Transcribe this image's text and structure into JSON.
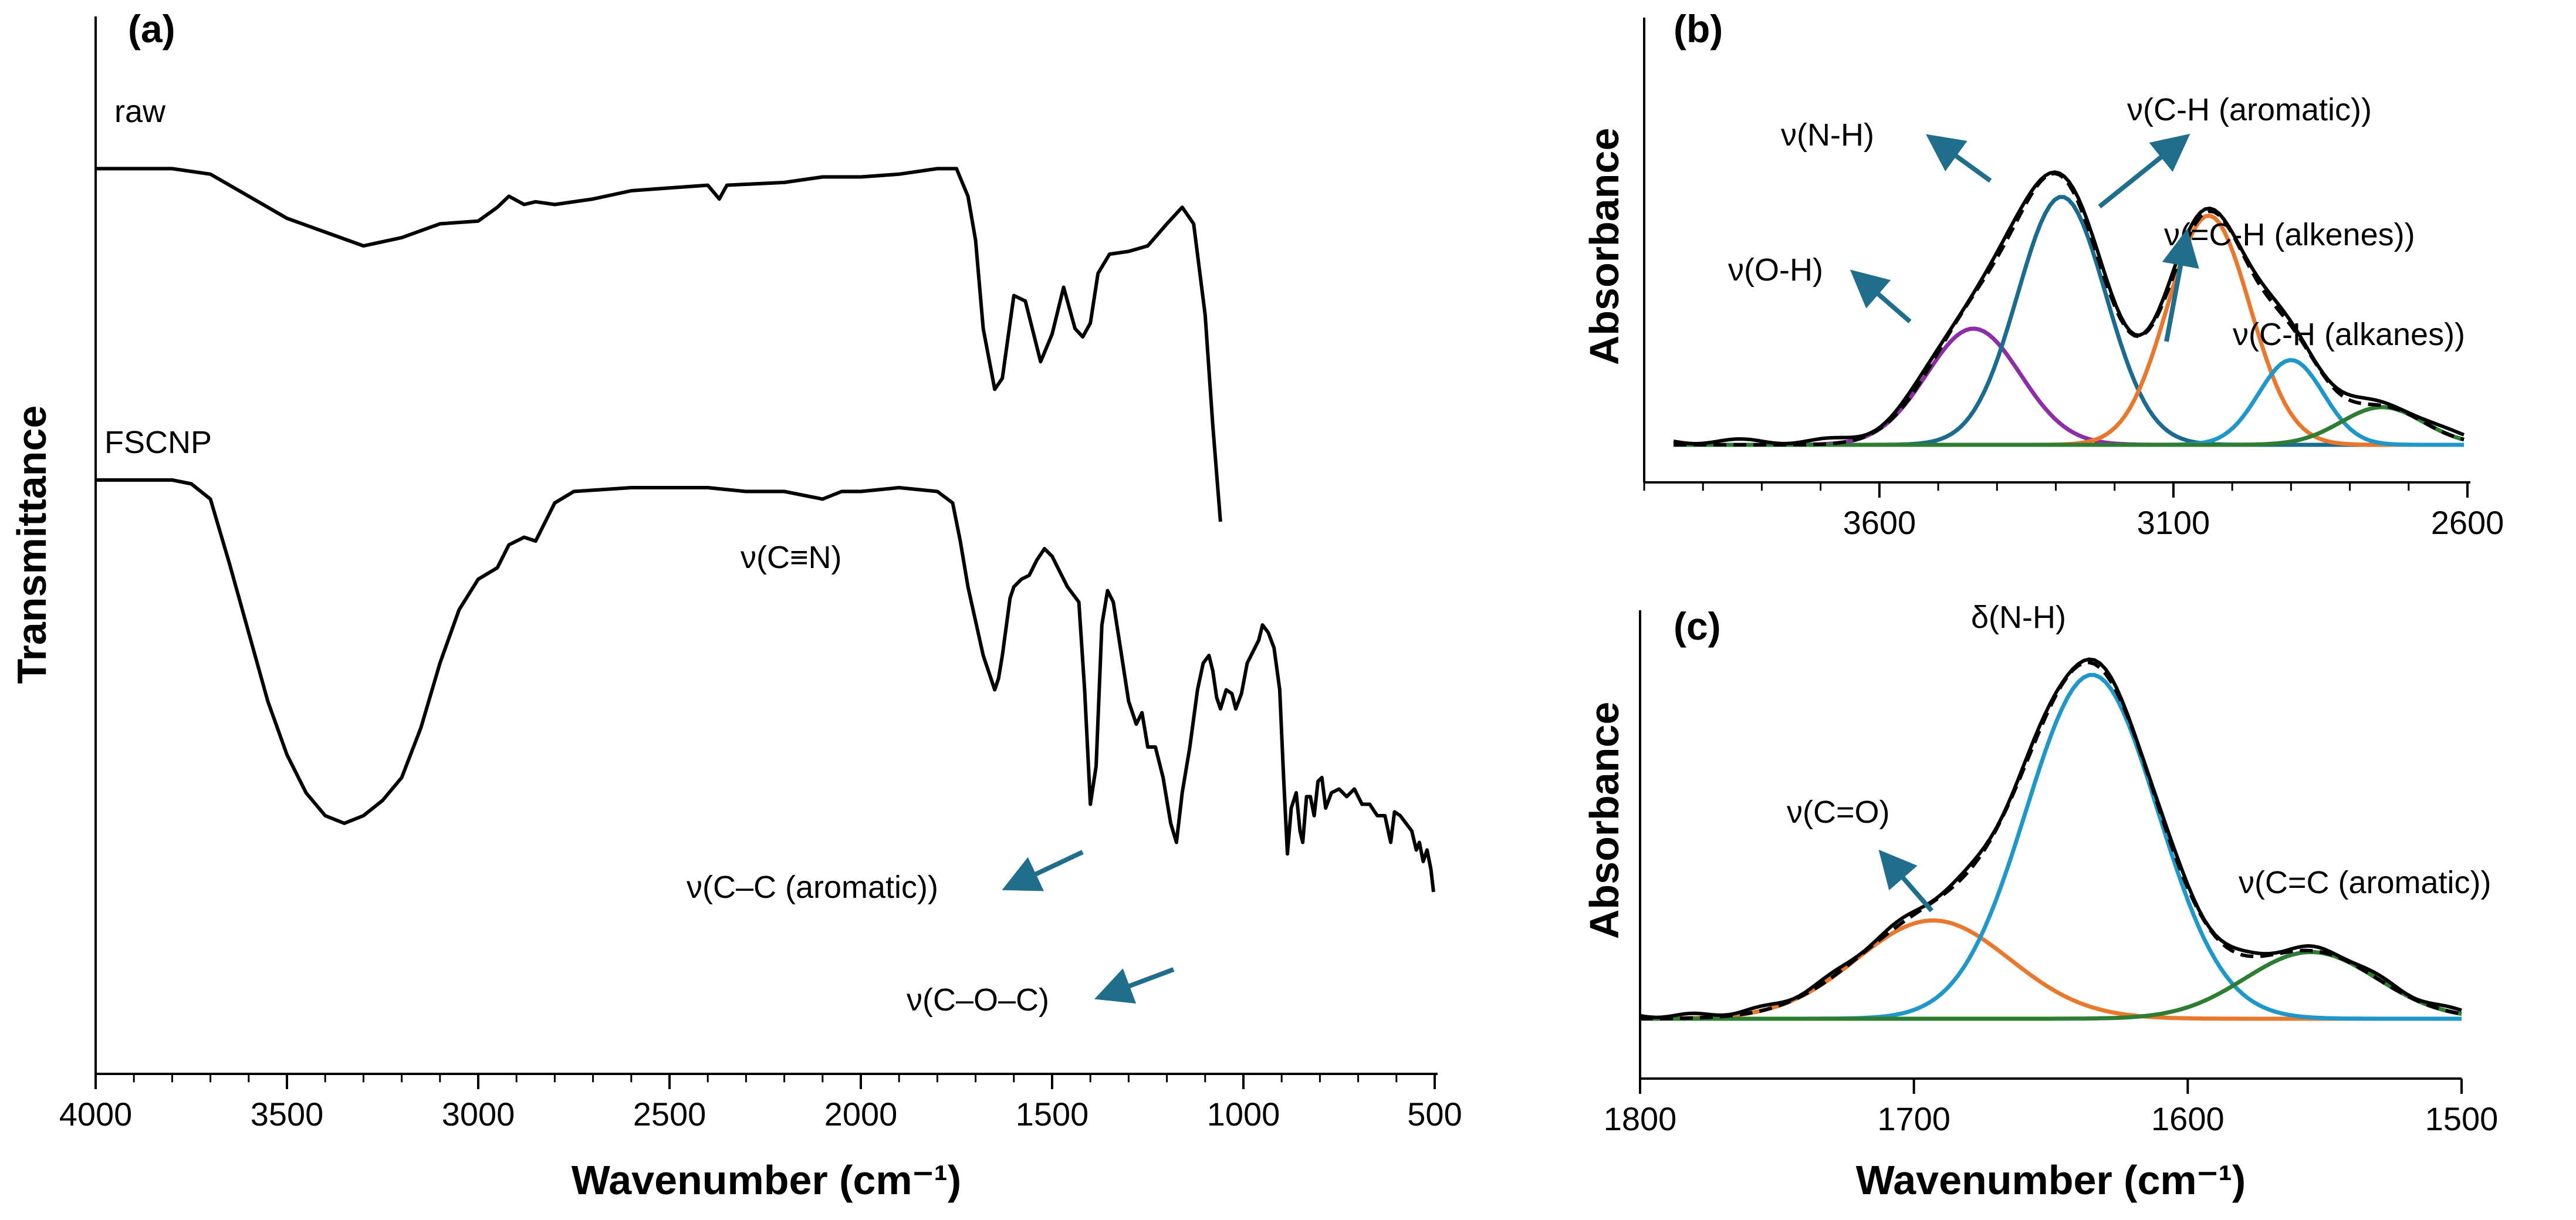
{
  "colors": {
    "spectrum": "#000000",
    "arrow": "#1f6e8c",
    "purple": "#8e2ea6",
    "teal": "#1b6b8f",
    "orange": "#e8782e",
    "lightblue": "#1f97c9",
    "green": "#2e7d32"
  },
  "chart_data": [
    {
      "id": "a",
      "panel": "(a)",
      "type": "line",
      "xlabel": "Wavenumber (cm⁻¹)",
      "ylabel": "Transmittance",
      "xlim": [
        4000,
        500
      ],
      "x_ticks": [
        "4000",
        "3500",
        "3000",
        "2500",
        "2000",
        "1500",
        "1000",
        "500"
      ],
      "series": [
        {
          "name": "raw",
          "points": [
            [
              4000,
              0.02
            ],
            [
              3900,
              0.02
            ],
            [
              3800,
              0.02
            ],
            [
              3700,
              0.04
            ],
            [
              3600,
              0.12
            ],
            [
              3500,
              0.2
            ],
            [
              3400,
              0.25
            ],
            [
              3300,
              0.3
            ],
            [
              3200,
              0.27
            ],
            [
              3100,
              0.22
            ],
            [
              3000,
              0.21
            ],
            [
              2950,
              0.16
            ],
            [
              2920,
              0.12
            ],
            [
              2880,
              0.15
            ],
            [
              2850,
              0.14
            ],
            [
              2800,
              0.15
            ],
            [
              2700,
              0.13
            ],
            [
              2600,
              0.1
            ],
            [
              2500,
              0.09
            ],
            [
              2400,
              0.08
            ],
            [
              2370,
              0.13
            ],
            [
              2350,
              0.08
            ],
            [
              2200,
              0.07
            ],
            [
              2100,
              0.05
            ],
            [
              2000,
              0.05
            ],
            [
              1900,
              0.04
            ],
            [
              1800,
              0.02
            ],
            [
              1750,
              0.02
            ],
            [
              1720,
              0.12
            ],
            [
              1700,
              0.28
            ],
            [
              1680,
              0.6
            ],
            [
              1650,
              0.82
            ],
            [
              1630,
              0.78
            ],
            [
              1600,
              0.48
            ],
            [
              1570,
              0.5
            ],
            [
              1530,
              0.72
            ],
            [
              1500,
              0.62
            ],
            [
              1470,
              0.45
            ],
            [
              1440,
              0.6
            ],
            [
              1420,
              0.63
            ],
            [
              1400,
              0.58
            ],
            [
              1380,
              0.4
            ],
            [
              1350,
              0.33
            ],
            [
              1300,
              0.32
            ],
            [
              1250,
              0.3
            ],
            [
              1200,
              0.22
            ],
            [
              1160,
              0.16
            ],
            [
              1130,
              0.22
            ],
            [
              1100,
              0.55
            ],
            [
              1080,
              0.95
            ],
            [
              1060,
              1.3
            ]
          ]
        },
        {
          "name": "FSCNP",
          "points": [
            [
              4000,
              0.0
            ],
            [
              3900,
              0.0
            ],
            [
              3800,
              0.0
            ],
            [
              3750,
              0.01
            ],
            [
              3700,
              0.05
            ],
            [
              3650,
              0.22
            ],
            [
              3600,
              0.4
            ],
            [
              3550,
              0.58
            ],
            [
              3500,
              0.72
            ],
            [
              3450,
              0.82
            ],
            [
              3400,
              0.88
            ],
            [
              3350,
              0.9
            ],
            [
              3300,
              0.88
            ],
            [
              3250,
              0.84
            ],
            [
              3200,
              0.78
            ],
            [
              3150,
              0.65
            ],
            [
              3100,
              0.48
            ],
            [
              3050,
              0.34
            ],
            [
              3000,
              0.26
            ],
            [
              2950,
              0.23
            ],
            [
              2920,
              0.17
            ],
            [
              2880,
              0.15
            ],
            [
              2850,
              0.16
            ],
            [
              2800,
              0.06
            ],
            [
              2750,
              0.03
            ],
            [
              2600,
              0.02
            ],
            [
              2500,
              0.02
            ],
            [
              2400,
              0.02
            ],
            [
              2300,
              0.03
            ],
            [
              2200,
              0.03
            ],
            [
              2150,
              0.04
            ],
            [
              2100,
              0.05
            ],
            [
              2050,
              0.03
            ],
            [
              2000,
              0.03
            ],
            [
              1900,
              0.02
            ],
            [
              1800,
              0.03
            ],
            [
              1760,
              0.06
            ],
            [
              1740,
              0.16
            ],
            [
              1720,
              0.28
            ],
            [
              1700,
              0.37
            ],
            [
              1680,
              0.46
            ],
            [
              1660,
              0.52
            ],
            [
              1650,
              0.55
            ],
            [
              1640,
              0.52
            ],
            [
              1630,
              0.46
            ],
            [
              1610,
              0.31
            ],
            [
              1600,
              0.28
            ],
            [
              1580,
              0.26
            ],
            [
              1560,
              0.25
            ],
            [
              1540,
              0.21
            ],
            [
              1520,
              0.18
            ],
            [
              1500,
              0.2
            ],
            [
              1480,
              0.24
            ],
            [
              1460,
              0.28
            ],
            [
              1430,
              0.32
            ],
            [
              1415,
              0.55
            ],
            [
              1400,
              0.85
            ],
            [
              1385,
              0.75
            ],
            [
              1370,
              0.38
            ],
            [
              1355,
              0.29
            ],
            [
              1340,
              0.32
            ],
            [
              1320,
              0.45
            ],
            [
              1300,
              0.58
            ],
            [
              1280,
              0.64
            ],
            [
              1265,
              0.61
            ],
            [
              1250,
              0.7
            ],
            [
              1230,
              0.7
            ],
            [
              1210,
              0.78
            ],
            [
              1190,
              0.9
            ],
            [
              1175,
              0.95
            ],
            [
              1160,
              0.82
            ],
            [
              1140,
              0.7
            ],
            [
              1120,
              0.55
            ],
            [
              1105,
              0.48
            ],
            [
              1090,
              0.46
            ],
            [
              1080,
              0.5
            ],
            [
              1070,
              0.57
            ],
            [
              1060,
              0.6
            ],
            [
              1045,
              0.55
            ],
            [
              1030,
              0.56
            ],
            [
              1020,
              0.6
            ],
            [
              1005,
              0.56
            ],
            [
              990,
              0.48
            ],
            [
              975,
              0.45
            ],
            [
              960,
              0.42
            ],
            [
              950,
              0.38
            ],
            [
              935,
              0.4
            ],
            [
              920,
              0.44
            ],
            [
              905,
              0.55
            ],
            [
              895,
              0.78
            ],
            [
              885,
              0.98
            ],
            [
              875,
              0.86
            ],
            [
              862,
              0.82
            ],
            [
              852,
              0.92
            ],
            [
              845,
              0.95
            ],
            [
              835,
              0.83
            ],
            [
              825,
              0.83
            ],
            [
              815,
              0.88
            ],
            [
              805,
              0.79
            ],
            [
              795,
              0.78
            ],
            [
              785,
              0.86
            ],
            [
              770,
              0.82
            ],
            [
              750,
              0.81
            ],
            [
              730,
              0.83
            ],
            [
              710,
              0.81
            ],
            [
              690,
              0.85
            ],
            [
              670,
              0.85
            ],
            [
              650,
              0.88
            ],
            [
              630,
              0.88
            ],
            [
              615,
              0.95
            ],
            [
              605,
              0.87
            ],
            [
              590,
              0.88
            ],
            [
              575,
              0.9
            ],
            [
              560,
              0.92
            ],
            [
              548,
              0.97
            ],
            [
              540,
              0.95
            ],
            [
              530,
              1.0
            ],
            [
              520,
              0.97
            ],
            [
              510,
              1.02
            ],
            [
              503,
              1.08
            ]
          ]
        }
      ],
      "annotations": [
        "ν(C≡N)",
        "ν(C–C (aromatic))",
        "ν(C–O–C)"
      ]
    },
    {
      "id": "b",
      "panel": "(b)",
      "type": "line",
      "ylabel": "Absorbance",
      "xlim": [
        4000,
        2600
      ],
      "x_ticks": [
        "3600",
        "3100",
        "2600"
      ],
      "ylim": [
        0,
        1.08
      ],
      "series": [
        {
          "name": "ν(O-H)",
          "color": "purple",
          "center": 3440,
          "amp": 0.37,
          "sigma": 80
        },
        {
          "name": "ν(N-H)",
          "color": "teal",
          "center": 3290,
          "amp": 0.79,
          "sigma": 75
        },
        {
          "name": "ν(C-H (aromatic))",
          "color": "orange",
          "center": 3040,
          "amp": 0.73,
          "sigma": 70
        },
        {
          "name": "ν(=C-H (alkenes))",
          "color": "lightblue",
          "center": 2900,
          "amp": 0.27,
          "sigma": 55
        },
        {
          "name": "ν(C-H (alkanes))",
          "color": "green",
          "center": 2745,
          "amp": 0.12,
          "sigma": 70
        }
      ],
      "annotations": [
        "ν(N-H)",
        "ν(C-H (aromatic))",
        "ν(=C-H (alkenes))",
        "ν(O-H)",
        "ν(C-H (alkanes))"
      ]
    },
    {
      "id": "c",
      "panel": "(c)",
      "type": "line",
      "ylabel": "Absorbance",
      "xlabel": "Wavenumber (cm⁻¹)",
      "xlim": [
        1800,
        1500
      ],
      "x_ticks": [
        "1800",
        "1700",
        "1600",
        "1500"
      ],
      "ylim": [
        0,
        1.08
      ],
      "series": [
        {
          "name": "ν(C=O)",
          "color": "orange",
          "center": 1693,
          "amp": 0.28,
          "sigma": 28
        },
        {
          "name": "δ(N-H)",
          "color": "lightblue",
          "center": 1635,
          "amp": 0.98,
          "sigma": 24
        },
        {
          "name": "ν(C=C (aromatic))",
          "color": "green",
          "center": 1555,
          "amp": 0.19,
          "sigma": 24
        }
      ],
      "annotations": [
        "δ(N-H)",
        "ν(C=O)",
        "ν(C=C (aromatic))"
      ]
    }
  ]
}
